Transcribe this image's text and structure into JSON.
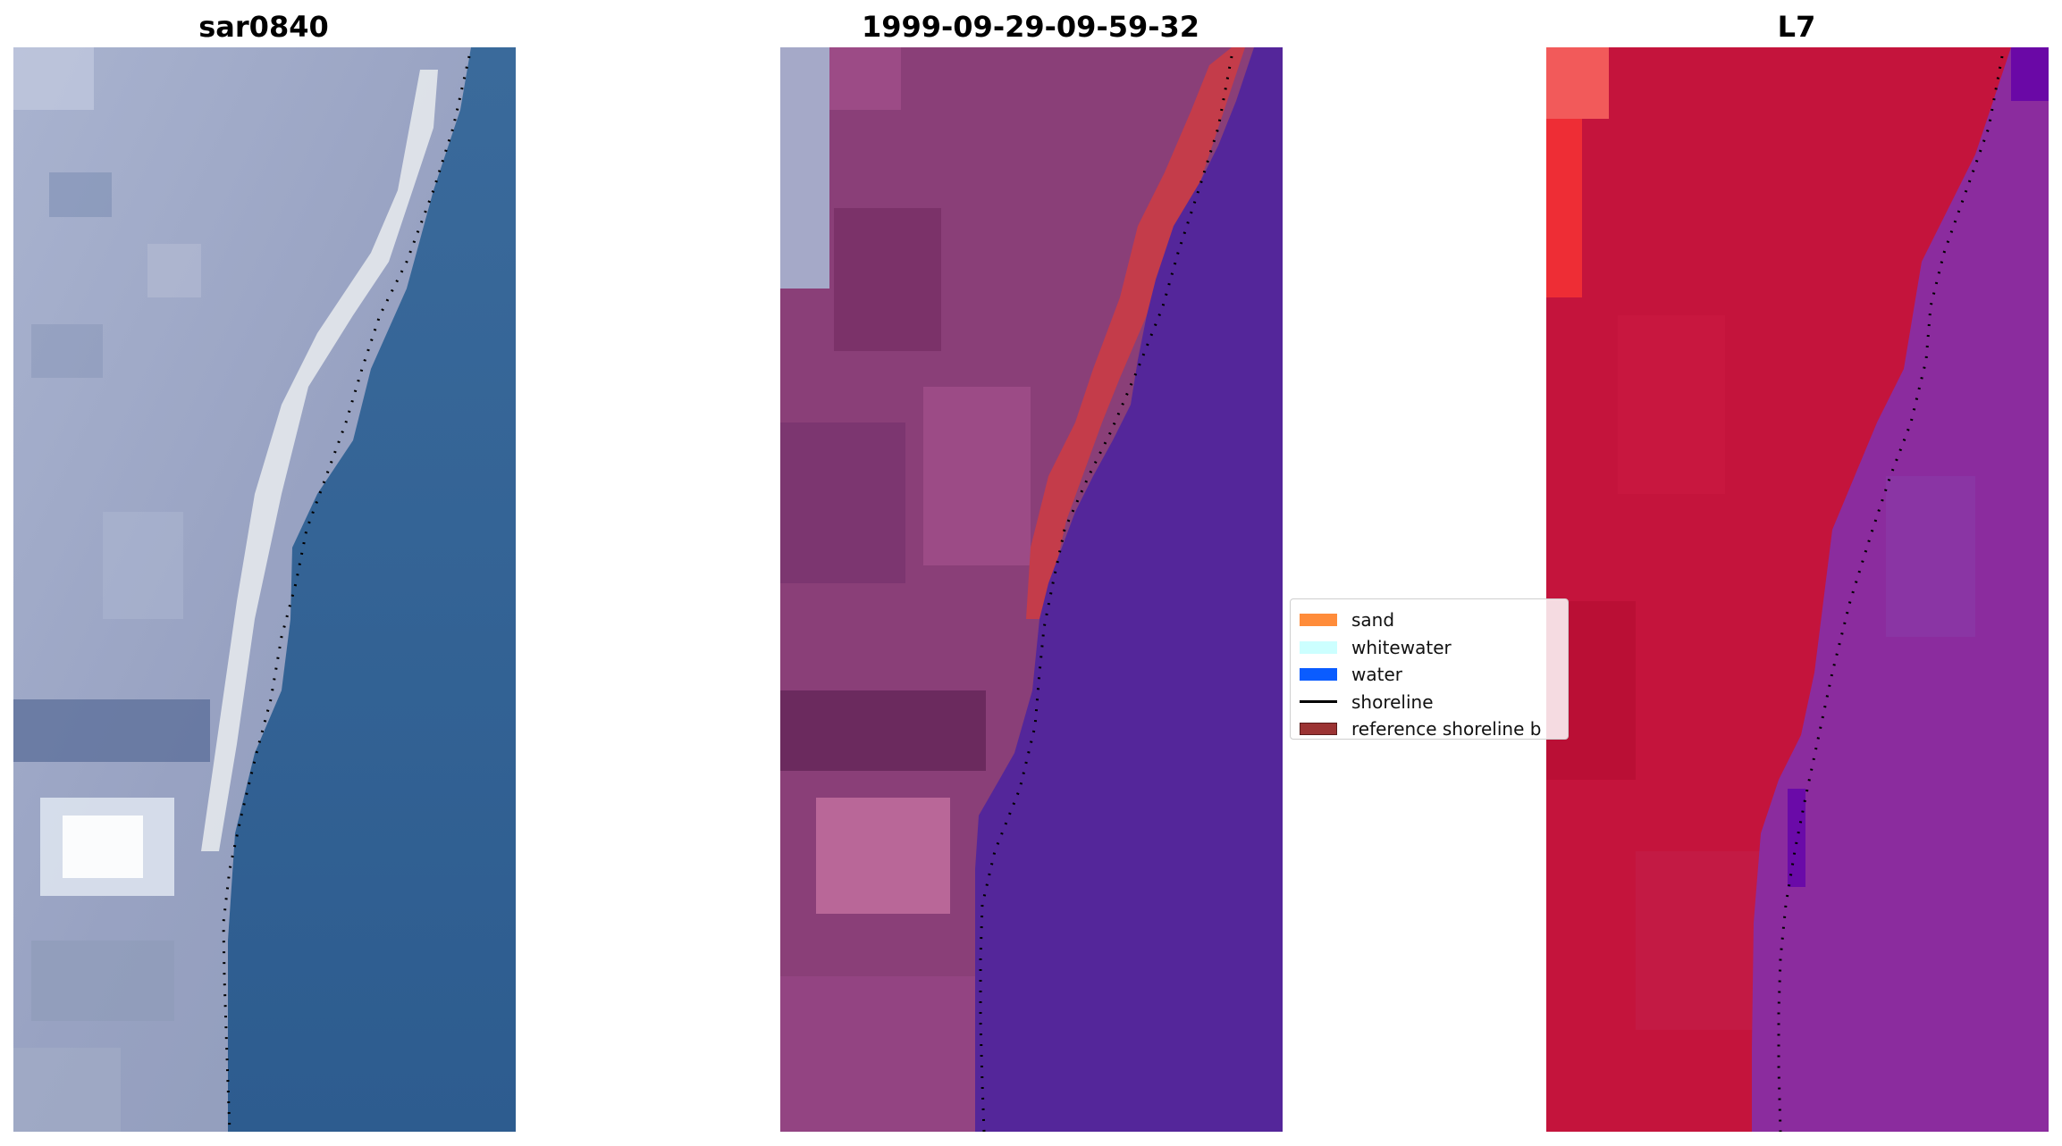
{
  "panels": [
    {
      "title": "sar0840"
    },
    {
      "title": "1999-09-29-09-59-32"
    },
    {
      "title": "L7"
    }
  ],
  "legend": {
    "items": [
      {
        "label": "sand",
        "color": "#ff8c3a",
        "kind": "patch"
      },
      {
        "label": "whitewater",
        "color": "#ccffff",
        "kind": "patch"
      },
      {
        "label": "water",
        "color": "#0a5cff",
        "kind": "patch"
      },
      {
        "label": "shoreline",
        "color": "#000000",
        "kind": "line"
      },
      {
        "label": "reference shoreline b",
        "color": "#9b3333",
        "kind": "patch"
      }
    ]
  },
  "colors": {
    "rgb_land": "#9ea7c4",
    "rgb_water": "#2f5f93",
    "classified_land": "#8a3f78",
    "classified_water": "#54269a",
    "classified_band": "#c43c4a",
    "nir_land": "#c4143c",
    "nir_water": "#8b2c9e",
    "shoreline_dots": "#000000"
  }
}
